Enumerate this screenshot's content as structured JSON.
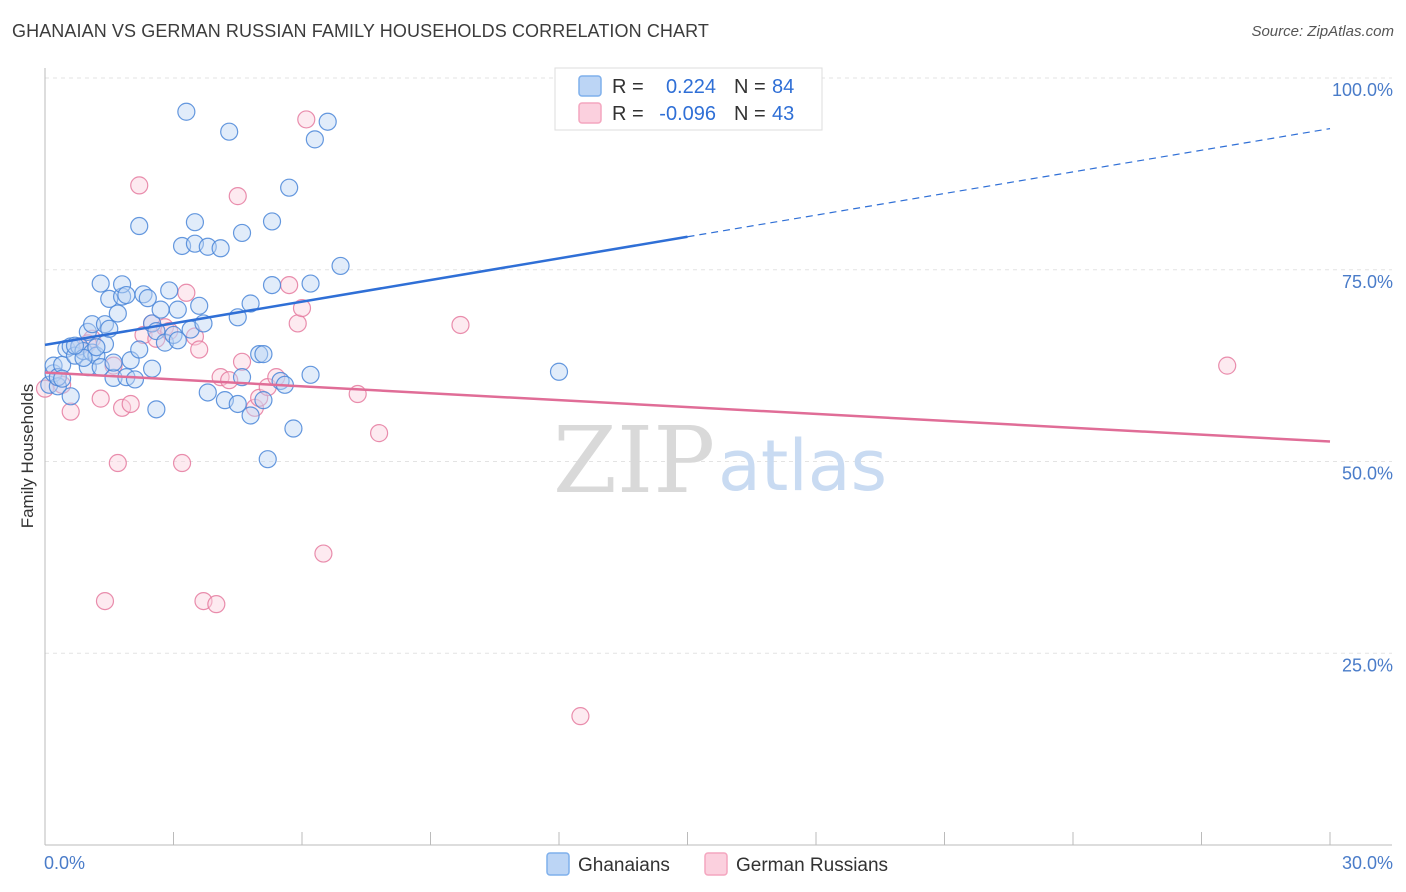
{
  "header": {
    "title": "GHANAIAN VS GERMAN RUSSIAN FAMILY HOUSEHOLDS CORRELATION CHART",
    "source": "Source: ZipAtlas.com"
  },
  "legend": {
    "rows": [
      {
        "r_label": "R =",
        "r_value": "0.224",
        "n_label": "N =",
        "n_value": "84",
        "color": "#7fb0ec"
      },
      {
        "r_label": "R =",
        "r_value": "-0.096",
        "n_label": "N =",
        "n_value": "43",
        "color": "#f4a6bf"
      }
    ]
  },
  "bottom_legend": {
    "series1": "Ghanaians",
    "series2": "German Russians"
  },
  "watermark": {
    "zip": "ZIP",
    "atlas": "atlas"
  },
  "chart_data": {
    "type": "scatter",
    "title": "GHANAIAN VS GERMAN RUSSIAN FAMILY HOUSEHOLDS CORRELATION CHART",
    "xlabel": "",
    "ylabel": "Family Households",
    "xlim": [
      0,
      30
    ],
    "ylim": [
      0,
      100
    ],
    "x_tick_labels": [
      "0.0%",
      "30.0%"
    ],
    "y_ticks": [
      25,
      50,
      75,
      100
    ],
    "y_tick_labels": [
      "25.0%",
      "50.0%",
      "75.0%",
      "100.0%"
    ],
    "grid": true,
    "series": [
      {
        "name": "Ghanaians",
        "color": "#7fb0ec",
        "stroke": "#4a86d8",
        "trend": {
          "x0": 0,
          "y0": 65.2,
          "x1": 15.0,
          "y1": 79.3,
          "dash_to_x": 30,
          "dash_to_y": 93.4,
          "color": "#2f6fd6"
        },
        "points": [
          [
            0.1,
            60.0
          ],
          [
            0.2,
            61.5
          ],
          [
            0.2,
            62.5
          ],
          [
            0.3,
            59.8
          ],
          [
            0.3,
            61.0
          ],
          [
            0.4,
            62.6
          ],
          [
            0.5,
            64.7
          ],
          [
            0.6,
            65.0
          ],
          [
            0.6,
            58.5
          ],
          [
            0.7,
            63.8
          ],
          [
            0.8,
            65.0
          ],
          [
            0.9,
            64.4
          ],
          [
            1.0,
            62.3
          ],
          [
            1.0,
            66.9
          ],
          [
            1.1,
            64.2
          ],
          [
            1.1,
            67.9
          ],
          [
            1.2,
            63.8
          ],
          [
            1.3,
            62.3
          ],
          [
            1.3,
            73.2
          ],
          [
            1.4,
            67.9
          ],
          [
            1.4,
            65.3
          ],
          [
            1.5,
            67.3
          ],
          [
            1.5,
            71.2
          ],
          [
            1.6,
            60.9
          ],
          [
            1.7,
            69.3
          ],
          [
            1.8,
            71.5
          ],
          [
            1.8,
            73.1
          ],
          [
            1.9,
            61.0
          ],
          [
            1.9,
            71.7
          ],
          [
            2.0,
            63.2
          ],
          [
            2.1,
            60.7
          ],
          [
            2.2,
            80.7
          ],
          [
            2.3,
            71.8
          ],
          [
            2.4,
            71.3
          ],
          [
            2.5,
            68.0
          ],
          [
            2.6,
            56.8
          ],
          [
            2.6,
            67.0
          ],
          [
            2.7,
            69.8
          ],
          [
            2.8,
            65.5
          ],
          [
            2.9,
            72.3
          ],
          [
            3.0,
            66.5
          ],
          [
            3.1,
            69.8
          ],
          [
            3.2,
            78.1
          ],
          [
            3.3,
            95.6
          ],
          [
            3.4,
            67.2
          ],
          [
            3.5,
            78.4
          ],
          [
            3.5,
            81.2
          ],
          [
            3.6,
            70.3
          ],
          [
            3.7,
            68.0
          ],
          [
            3.8,
            78.0
          ],
          [
            3.8,
            59.0
          ],
          [
            4.1,
            77.8
          ],
          [
            4.2,
            58.0
          ],
          [
            4.3,
            93.0
          ],
          [
            4.5,
            57.5
          ],
          [
            4.5,
            68.8
          ],
          [
            4.6,
            79.8
          ],
          [
            4.6,
            61.0
          ],
          [
            4.8,
            70.6
          ],
          [
            4.8,
            56.0
          ],
          [
            5.0,
            64.0
          ],
          [
            5.1,
            64.0
          ],
          [
            5.1,
            58.0
          ],
          [
            5.2,
            50.3
          ],
          [
            5.3,
            73.0
          ],
          [
            5.3,
            81.3
          ],
          [
            5.5,
            60.5
          ],
          [
            5.6,
            60.0
          ],
          [
            5.7,
            85.7
          ],
          [
            5.8,
            54.3
          ],
          [
            6.2,
            73.2
          ],
          [
            6.2,
            61.3
          ],
          [
            6.3,
            92.0
          ],
          [
            6.6,
            94.3
          ],
          [
            6.9,
            75.5
          ],
          [
            12.0,
            61.7
          ],
          [
            0.4,
            60.8
          ],
          [
            0.9,
            63.5
          ],
          [
            1.6,
            62.9
          ],
          [
            2.5,
            62.1
          ],
          [
            3.1,
            65.8
          ],
          [
            1.2,
            64.9
          ],
          [
            0.7,
            65.1
          ],
          [
            2.2,
            64.6
          ]
        ]
      },
      {
        "name": "German Russians",
        "color": "#f4a6bf",
        "stroke": "#e57a9f",
        "trend": {
          "x0": 0,
          "y0": 61.6,
          "x1": 30,
          "y1": 52.6,
          "color": "#e06d97"
        },
        "points": [
          [
            0.0,
            59.5
          ],
          [
            0.3,
            61.0
          ],
          [
            0.6,
            56.5
          ],
          [
            0.8,
            65.0
          ],
          [
            1.1,
            66.0
          ],
          [
            1.3,
            58.2
          ],
          [
            1.4,
            31.8
          ],
          [
            1.6,
            62.5
          ],
          [
            1.7,
            49.8
          ],
          [
            1.8,
            57.0
          ],
          [
            2.0,
            57.5
          ],
          [
            2.2,
            86.0
          ],
          [
            2.3,
            66.5
          ],
          [
            2.5,
            68.0
          ],
          [
            2.6,
            66.0
          ],
          [
            2.8,
            67.5
          ],
          [
            3.2,
            49.8
          ],
          [
            3.3,
            72.0
          ],
          [
            3.5,
            66.3
          ],
          [
            3.6,
            64.6
          ],
          [
            3.7,
            31.8
          ],
          [
            4.0,
            31.4
          ],
          [
            4.1,
            61.0
          ],
          [
            4.3,
            60.6
          ],
          [
            4.5,
            84.6
          ],
          [
            4.6,
            63.0
          ],
          [
            4.9,
            57.0
          ],
          [
            5.0,
            58.3
          ],
          [
            5.2,
            59.7
          ],
          [
            5.4,
            61.0
          ],
          [
            5.7,
            73.0
          ],
          [
            5.9,
            68.0
          ],
          [
            6.0,
            70.0
          ],
          [
            6.1,
            94.6
          ],
          [
            6.5,
            38.0
          ],
          [
            7.3,
            58.8
          ],
          [
            7.8,
            53.7
          ],
          [
            9.7,
            67.8
          ],
          [
            12.5,
            16.8
          ],
          [
            27.6,
            62.5
          ],
          [
            0.4,
            60.0
          ],
          [
            1.0,
            65.4
          ],
          [
            2.9,
            67.0
          ]
        ]
      }
    ]
  }
}
